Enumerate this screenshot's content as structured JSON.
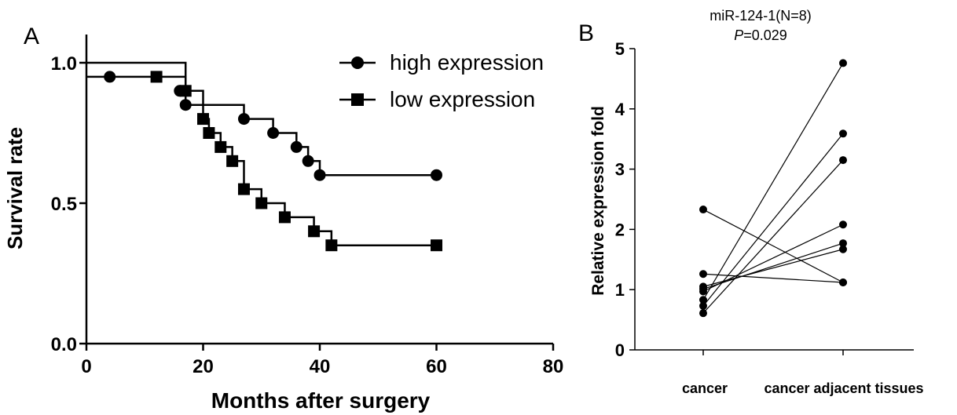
{
  "chart_data": [
    {
      "type": "line",
      "panel_label": "A",
      "xlabel": "Months after surgery",
      "ylabel": "Survival rate",
      "xlim": [
        0,
        80
      ],
      "ylim": [
        0,
        1
      ],
      "x_ticks": [
        "0",
        "20",
        "40",
        "60",
        "80"
      ],
      "y_ticks": [
        "0.0",
        "0.5",
        "1.0"
      ],
      "legend_position": "top-right",
      "grid": false,
      "series": [
        {
          "name": "high expression",
          "marker": "circle",
          "steps": [
            [
              0,
              1.0
            ],
            [
              12,
              1.0
            ],
            [
              17,
              0.85
            ],
            [
              27,
              0.8
            ],
            [
              32,
              0.75
            ],
            [
              36,
              0.7
            ],
            [
              38,
              0.65
            ],
            [
              40,
              0.6
            ],
            [
              60,
              0.6
            ]
          ],
          "censor_marks": [
            [
              4,
              0.95
            ],
            [
              16,
              0.9
            ],
            [
              17,
              0.85
            ],
            [
              27,
              0.8
            ],
            [
              32,
              0.75
            ],
            [
              36,
              0.7
            ],
            [
              38,
              0.65
            ],
            [
              40,
              0.6
            ],
            [
              60,
              0.6
            ]
          ]
        },
        {
          "name": "low expression",
          "marker": "square",
          "steps": [
            [
              0,
              0.95
            ],
            [
              12,
              0.95
            ],
            [
              17,
              0.9
            ],
            [
              20,
              0.8
            ],
            [
              21,
              0.75
            ],
            [
              23,
              0.7
            ],
            [
              25,
              0.65
            ],
            [
              27,
              0.55
            ],
            [
              30,
              0.5
            ],
            [
              34,
              0.45
            ],
            [
              39,
              0.4
            ],
            [
              42,
              0.35
            ],
            [
              60,
              0.35
            ]
          ],
          "censor_marks": [
            [
              12,
              0.95
            ],
            [
              17,
              0.9
            ],
            [
              20,
              0.8
            ],
            [
              21,
              0.75
            ],
            [
              23,
              0.7
            ],
            [
              25,
              0.65
            ],
            [
              27,
              0.55
            ],
            [
              30,
              0.5
            ],
            [
              34,
              0.45
            ],
            [
              39,
              0.4
            ],
            [
              42,
              0.35
            ],
            [
              60,
              0.35
            ]
          ]
        }
      ]
    },
    {
      "type": "scatter",
      "panel_label": "B",
      "title": "miR-124-1(N=8)",
      "subtitle_p_label": "P",
      "subtitle_value": "=0.029",
      "ylabel": "Relative expression fold",
      "categories": [
        "cancer",
        "cancer adjacent tissues"
      ],
      "ylim": [
        0,
        5
      ],
      "y_ticks": [
        "0",
        "1",
        "2",
        "3",
        "4",
        "5"
      ],
      "grid": false,
      "pairs": [
        [
          2.33,
          1.12
        ],
        [
          1.26,
          1.12
        ],
        [
          1.05,
          1.67
        ],
        [
          1.01,
          1.77
        ],
        [
          0.97,
          2.08
        ],
        [
          0.83,
          4.76
        ],
        [
          0.73,
          3.59
        ],
        [
          0.61,
          3.15
        ]
      ]
    }
  ]
}
